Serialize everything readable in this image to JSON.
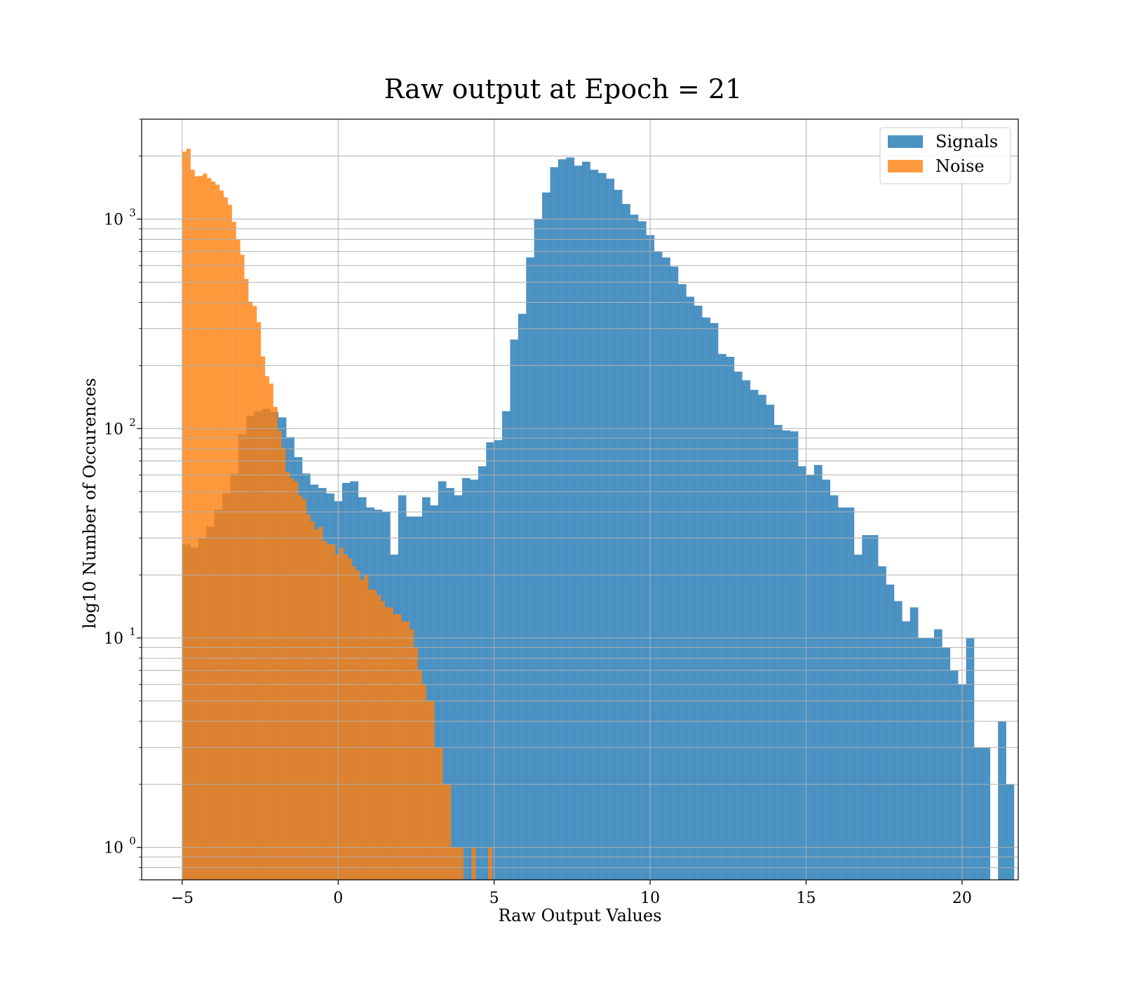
{
  "chart_data": {
    "type": "histogram",
    "title": "Raw output at Epoch = 21",
    "xlabel": "Raw Output Values",
    "ylabel": "log10 Number of Occurences",
    "xlim": [
      -6.3,
      21.8
    ],
    "ylim": [
      0.7,
      3000
    ],
    "yscale": "log",
    "grid": true,
    "legend_position": "top-right",
    "x_ticks": [
      -5,
      0,
      5,
      10,
      15,
      20
    ],
    "x_tick_labels": [
      "−5",
      "0",
      "5",
      "10",
      "15",
      "20"
    ],
    "y_ticks": [
      1,
      10,
      100,
      1000
    ],
    "y_tick_labels": [
      {
        "base": "10",
        "exp": "0"
      },
      {
        "base": "10",
        "exp": "1"
      },
      {
        "base": "10",
        "exp": "2"
      },
      {
        "base": "10",
        "exp": "3"
      }
    ],
    "series": [
      {
        "name": "Signals",
        "color": "#1f77b4",
        "opacity": 0.8,
        "bin_start": -5.0,
        "bin_width": 0.2564,
        "counts": [
          28,
          27,
          30,
          34,
          41,
          49,
          61,
          94,
          115,
          121,
          124,
          120,
          113,
          91,
          73,
          61,
          54,
          52,
          49,
          45,
          55,
          56,
          47,
          42,
          41,
          40,
          25,
          48,
          38,
          38,
          47,
          43,
          56,
          52,
          48,
          58,
          57,
          66,
          86,
          88,
          121,
          266,
          353,
          656,
          1000,
          1340,
          1770,
          1930,
          1970,
          1800,
          1880,
          1720,
          1660,
          1560,
          1380,
          1180,
          1050,
          977,
          839,
          700,
          656,
          594,
          489,
          426,
          386,
          339,
          319,
          227,
          220,
          187,
          170,
          153,
          145,
          130,
          104,
          98,
          97,
          66,
          60,
          67,
          57,
          48,
          42,
          42,
          25,
          31,
          31,
          22,
          18,
          15,
          12,
          14,
          10,
          10,
          11,
          9,
          7,
          6,
          10,
          3,
          3,
          0,
          4,
          2
        ]
      },
      {
        "name": "Noise",
        "color": "#ff7f0e",
        "opacity": 0.8,
        "bin_start": -5.0,
        "bin_width": 0.1325,
        "counts": [
          2100,
          2170,
          1720,
          1600,
          1610,
          1650,
          1570,
          1510,
          1460,
          1370,
          1270,
          1170,
          970,
          799,
          676,
          518,
          404,
          385,
          322,
          221,
          178,
          164,
          127,
          98,
          81,
          62,
          58,
          56,
          48,
          46,
          39,
          36,
          33,
          34,
          29,
          28,
          28,
          25,
          27,
          25,
          24,
          22,
          21,
          19,
          20,
          17,
          17,
          16,
          15,
          14,
          14,
          13,
          13,
          12,
          12,
          11,
          9,
          7,
          6,
          5,
          5,
          3,
          3,
          2,
          2,
          1,
          1,
          1,
          0,
          0,
          1,
          0,
          0,
          0,
          1,
          0,
          0,
          0,
          0,
          0,
          0,
          0,
          0,
          0,
          0,
          0,
          0,
          0
        ]
      }
    ]
  }
}
